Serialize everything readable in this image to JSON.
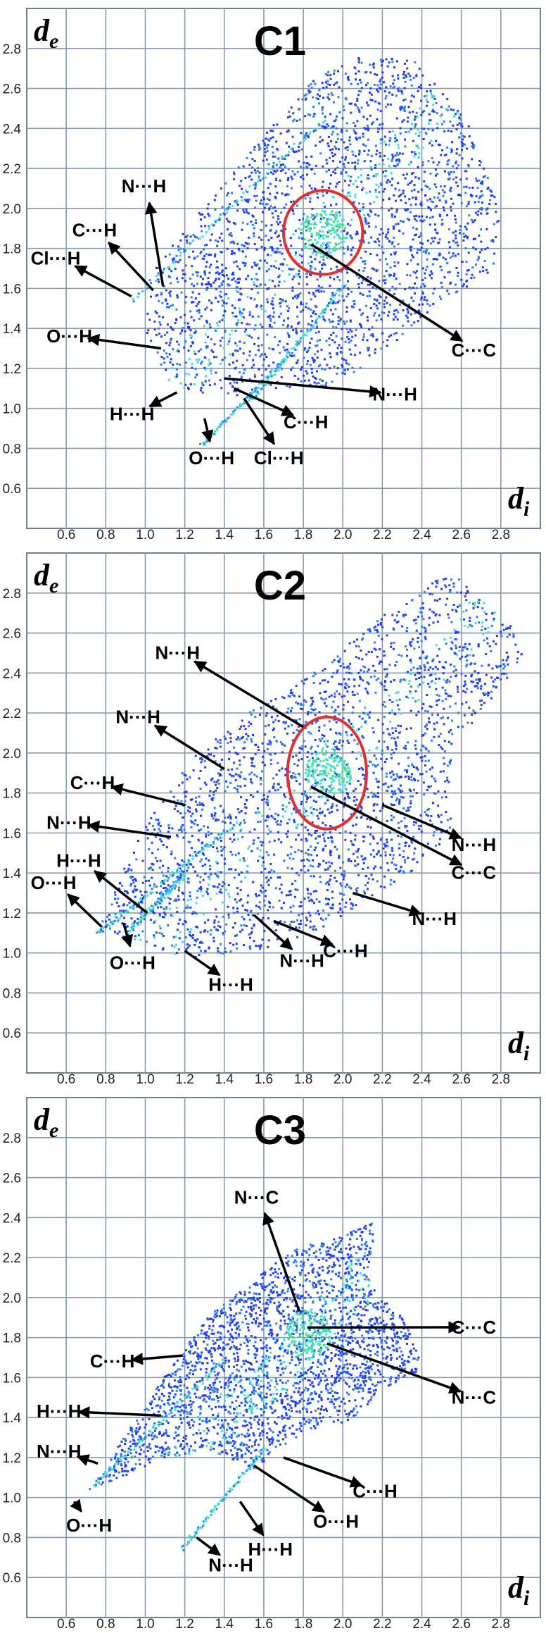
{
  "colors": {
    "grid": "#8a99ad",
    "frame": "#6f7f95",
    "points_low": "#1f3df2",
    "points_mid": "#2f7df0",
    "points_high": "#3fe0d8",
    "hot": "#4fe08a",
    "circle": "#e03030",
    "arrow": "#000000"
  },
  "chart_data": [
    {
      "type": "scatter",
      "subtype": "hirshfeld-fingerprint",
      "title": "C1",
      "xlabel": "d_i",
      "ylabel": "d_e",
      "xticks": [
        "0.6",
        "0.8",
        "1.0",
        "1.2",
        "1.4",
        "1.6",
        "1.8",
        "2.0",
        "2.2",
        "2.4",
        "2.6",
        "2.8"
      ],
      "yticks": [
        "0.6",
        "0.8",
        "1.0",
        "1.2",
        "1.4",
        "1.6",
        "1.8",
        "2.0",
        "2.2",
        "2.4",
        "2.6",
        "2.8"
      ],
      "xlim": [
        0.4,
        3.0
      ],
      "ylim": [
        0.4,
        3.0
      ],
      "grid": true,
      "cloud": [
        [
          1.0,
          1.38
        ],
        [
          1.12,
          1.12
        ],
        [
          1.45,
          1.05
        ],
        [
          1.6,
          1.1
        ],
        [
          1.95,
          1.12
        ],
        [
          2.2,
          1.28
        ],
        [
          2.5,
          1.55
        ],
        [
          2.75,
          1.68
        ],
        [
          2.8,
          1.98
        ],
        [
          2.62,
          2.45
        ],
        [
          2.35,
          2.75
        ],
        [
          2.05,
          2.76
        ],
        [
          1.85,
          2.65
        ],
        [
          1.62,
          2.4
        ],
        [
          1.4,
          2.15
        ],
        [
          1.2,
          1.9
        ],
        [
          1.02,
          1.68
        ]
      ],
      "spikes": [
        [
          [
            0.93,
            1.55
          ],
          [
            1.9,
            2.45
          ]
        ],
        [
          [
            1.52,
            1.03
          ],
          [
            2.0,
            1.62
          ]
        ],
        [
          [
            1.28,
            0.82
          ],
          [
            1.7,
            1.25
          ]
        ]
      ],
      "highlight_circle": {
        "x": 1.9,
        "y": 1.88,
        "rx": 0.2,
        "ry": 0.21
      },
      "annotations": [
        {
          "label": "N···H",
          "point": [
            1.09,
            1.61
          ],
          "text": [
            0.88,
            2.08
          ]
        },
        {
          "label": "C···H",
          "point": [
            1.04,
            1.59
          ],
          "text": [
            0.63,
            1.86
          ]
        },
        {
          "label": "Cl···H",
          "point": [
            0.93,
            1.56
          ],
          "text": [
            0.42,
            1.72
          ]
        },
        {
          "label": "O···H",
          "point": [
            1.08,
            1.3
          ],
          "text": [
            0.5,
            1.33
          ]
        },
        {
          "label": "H···H",
          "point": [
            1.16,
            1.08
          ],
          "text": [
            0.82,
            0.94
          ]
        },
        {
          "label": "O···H",
          "point": [
            1.3,
            0.95
          ],
          "text": [
            1.22,
            0.72
          ]
        },
        {
          "label": "Cl···H",
          "point": [
            1.5,
            1.05
          ],
          "text": [
            1.55,
            0.72
          ]
        },
        {
          "label": "C···H",
          "point": [
            1.45,
            1.1
          ],
          "text": [
            1.7,
            0.9
          ]
        },
        {
          "label": "N···H",
          "point": [
            1.4,
            1.15
          ],
          "text": [
            2.15,
            1.04
          ]
        },
        {
          "label": "C···C",
          "point": [
            1.84,
            1.82
          ],
          "text": [
            2.55,
            1.26
          ]
        }
      ]
    },
    {
      "type": "scatter",
      "subtype": "hirshfeld-fingerprint",
      "title": "C2",
      "xlabel": "d_i",
      "ylabel": "d_e",
      "xticks": [
        "0.6",
        "0.8",
        "1.0",
        "1.2",
        "1.4",
        "1.6",
        "1.8",
        "2.0",
        "2.2",
        "2.4",
        "2.6",
        "2.8"
      ],
      "yticks": [
        "0.6",
        "0.8",
        "1.0",
        "1.2",
        "1.4",
        "1.6",
        "1.8",
        "2.0",
        "2.2",
        "2.4",
        "2.6",
        "2.8"
      ],
      "xlim": [
        0.4,
        3.0
      ],
      "ylim": [
        0.4,
        3.0
      ],
      "grid": true,
      "cloud": [
        [
          0.75,
          1.1
        ],
        [
          1.0,
          1.05
        ],
        [
          1.2,
          0.98
        ],
        [
          1.5,
          1.0
        ],
        [
          1.8,
          1.08
        ],
        [
          2.1,
          1.25
        ],
        [
          2.4,
          1.45
        ],
        [
          2.55,
          1.62
        ],
        [
          2.55,
          2.0
        ],
        [
          2.95,
          2.55
        ],
        [
          2.55,
          2.92
        ],
        [
          2.2,
          2.7
        ],
        [
          1.9,
          2.45
        ],
        [
          1.7,
          2.3
        ],
        [
          1.5,
          2.2
        ],
        [
          1.25,
          2.0
        ],
        [
          1.0,
          1.65
        ],
        [
          0.85,
          1.35
        ]
      ],
      "spikes": [
        [
          [
            0.75,
            1.1
          ],
          [
            1.45,
            1.65
          ]
        ],
        [
          [
            0.92,
            1.12
          ],
          [
            1.2,
            1.4
          ]
        ]
      ],
      "highlight_circle": {
        "x": 1.92,
        "y": 1.9,
        "rx": 0.2,
        "ry": 0.28
      },
      "annotations": [
        {
          "label": "N···H",
          "point": [
            1.8,
            2.13
          ],
          "text": [
            1.05,
            2.47
          ]
        },
        {
          "label": "N···H",
          "point": [
            1.4,
            1.92
          ],
          "text": [
            0.85,
            2.15
          ]
        },
        {
          "label": "C···H",
          "point": [
            1.2,
            1.74
          ],
          "text": [
            0.62,
            1.82
          ]
        },
        {
          "label": "N···H",
          "point": [
            1.13,
            1.58
          ],
          "text": [
            0.5,
            1.62
          ]
        },
        {
          "label": "H···H",
          "point": [
            1.01,
            1.2
          ],
          "text": [
            0.55,
            1.43
          ]
        },
        {
          "label": "O···H",
          "point": [
            0.78,
            1.13
          ],
          "text": [
            0.42,
            1.32
          ]
        },
        {
          "label": "O···H",
          "point": [
            0.89,
            1.15
          ],
          "text": [
            0.82,
            0.92
          ]
        },
        {
          "label": "H···H",
          "point": [
            1.2,
            1.01
          ],
          "text": [
            1.32,
            0.81
          ]
        },
        {
          "label": "N···H",
          "point": [
            1.55,
            1.19
          ],
          "text": [
            1.68,
            0.93
          ]
        },
        {
          "label": "C···H",
          "point": [
            1.65,
            1.16
          ],
          "text": [
            1.9,
            0.98
          ]
        },
        {
          "label": "N···H",
          "point": [
            2.05,
            1.3
          ],
          "text": [
            2.35,
            1.14
          ]
        },
        {
          "label": "N···H",
          "point": [
            2.2,
            1.74
          ],
          "text": [
            2.55,
            1.51
          ]
        },
        {
          "label": "C···C",
          "point": [
            1.84,
            1.83
          ],
          "text": [
            2.55,
            1.37
          ]
        }
      ]
    },
    {
      "type": "scatter",
      "subtype": "hirshfeld-fingerprint",
      "title": "C3",
      "xlabel": "d_i",
      "ylabel": "d_e",
      "xticks": [
        "0.6",
        "0.8",
        "1.0",
        "1.2",
        "1.4",
        "1.6",
        "1.8",
        "2.0",
        "2.2",
        "2.4",
        "2.6",
        "2.8"
      ],
      "yticks": [
        "0.6",
        "0.8",
        "1.0",
        "1.2",
        "1.4",
        "1.6",
        "1.8",
        "2.0",
        "2.2",
        "2.4",
        "2.6",
        "2.8"
      ],
      "xlim": [
        0.4,
        3.0
      ],
      "ylim": [
        0.4,
        3.0
      ],
      "grid": true,
      "cloud": [
        [
          0.72,
          1.05
        ],
        [
          1.0,
          1.15
        ],
        [
          1.3,
          1.25
        ],
        [
          1.55,
          1.15
        ],
        [
          1.75,
          1.3
        ],
        [
          2.05,
          1.4
        ],
        [
          2.2,
          1.55
        ],
        [
          2.4,
          1.65
        ],
        [
          2.32,
          1.88
        ],
        [
          2.15,
          2.05
        ],
        [
          2.15,
          2.38
        ],
        [
          1.95,
          2.3
        ],
        [
          1.75,
          2.25
        ],
        [
          1.55,
          2.1
        ],
        [
          1.3,
          1.9
        ],
        [
          1.05,
          1.55
        ],
        [
          0.85,
          1.25
        ]
      ],
      "spikes": [
        [
          [
            1.18,
            0.75
          ],
          [
            1.6,
            1.25
          ]
        ],
        [
          [
            0.72,
            1.05
          ],
          [
            1.4,
            1.7
          ]
        ]
      ],
      "highlight_circle": null,
      "annotations": [
        {
          "label": "N···C",
          "point": [
            1.78,
            1.93
          ],
          "text": [
            1.45,
            2.47
          ]
        },
        {
          "label": "C···C",
          "point": [
            1.82,
            1.85
          ],
          "text": [
            2.55,
            1.82
          ]
        },
        {
          "label": "N···C",
          "point": [
            1.92,
            1.77
          ],
          "text": [
            2.55,
            1.47
          ]
        },
        {
          "label": "C···H",
          "point": [
            1.19,
            1.71
          ],
          "text": [
            0.72,
            1.65
          ]
        },
        {
          "label": "H···H",
          "point": [
            1.08,
            1.41
          ],
          "text": [
            0.45,
            1.4
          ]
        },
        {
          "label": "N···H",
          "point": [
            0.76,
            1.17
          ],
          "text": [
            0.45,
            1.2
          ]
        },
        {
          "label": "O···H",
          "point": [
            0.64,
            0.98
          ],
          "text": [
            0.6,
            0.83
          ]
        },
        {
          "label": "C···H",
          "point": [
            1.7,
            1.2
          ],
          "text": [
            2.05,
            1.0
          ]
        },
        {
          "label": "O···H",
          "point": [
            1.55,
            1.16
          ],
          "text": [
            1.85,
            0.85
          ]
        },
        {
          "label": "H···H",
          "point": [
            1.48,
            0.98
          ],
          "text": [
            1.52,
            0.71
          ]
        },
        {
          "label": "N···H",
          "point": [
            1.26,
            0.8
          ],
          "text": [
            1.32,
            0.63
          ]
        }
      ]
    }
  ]
}
